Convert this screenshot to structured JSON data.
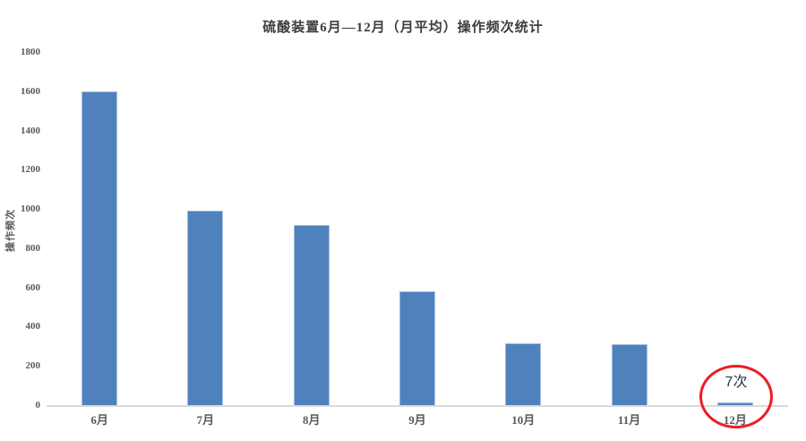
{
  "chart": {
    "title": "硫酸装置6月—12月（月平均）操作频次统计",
    "y_axis_title": "操作频次"
  },
  "chart_data": {
    "type": "bar",
    "title": "硫酸装置6月—12月（月平均）操作频次统计",
    "categories": [
      "6月",
      "7月",
      "8月",
      "9月",
      "10月",
      "11月",
      "12月"
    ],
    "values": [
      1600,
      990,
      920,
      580,
      315,
      310,
      7
    ],
    "xlabel": "",
    "ylabel": "操作频次",
    "ylim": [
      0,
      1800
    ],
    "ytick_step": 200,
    "grid": false,
    "legend": "none",
    "bar_color": "#4f81bd",
    "annotation": {
      "text": "7次",
      "target_category": "12月",
      "shape": "red-ellipse",
      "circle_color": "#ee1c25"
    }
  },
  "colors": {
    "bar": "#4f81bd",
    "bar_border": "#a3bfe0",
    "axis_line": "#dadada",
    "tick_label": "#595959",
    "title_text": "#3d3d3d",
    "annotation_text": "#26364e",
    "annotation_circle": "#ee1c25"
  }
}
